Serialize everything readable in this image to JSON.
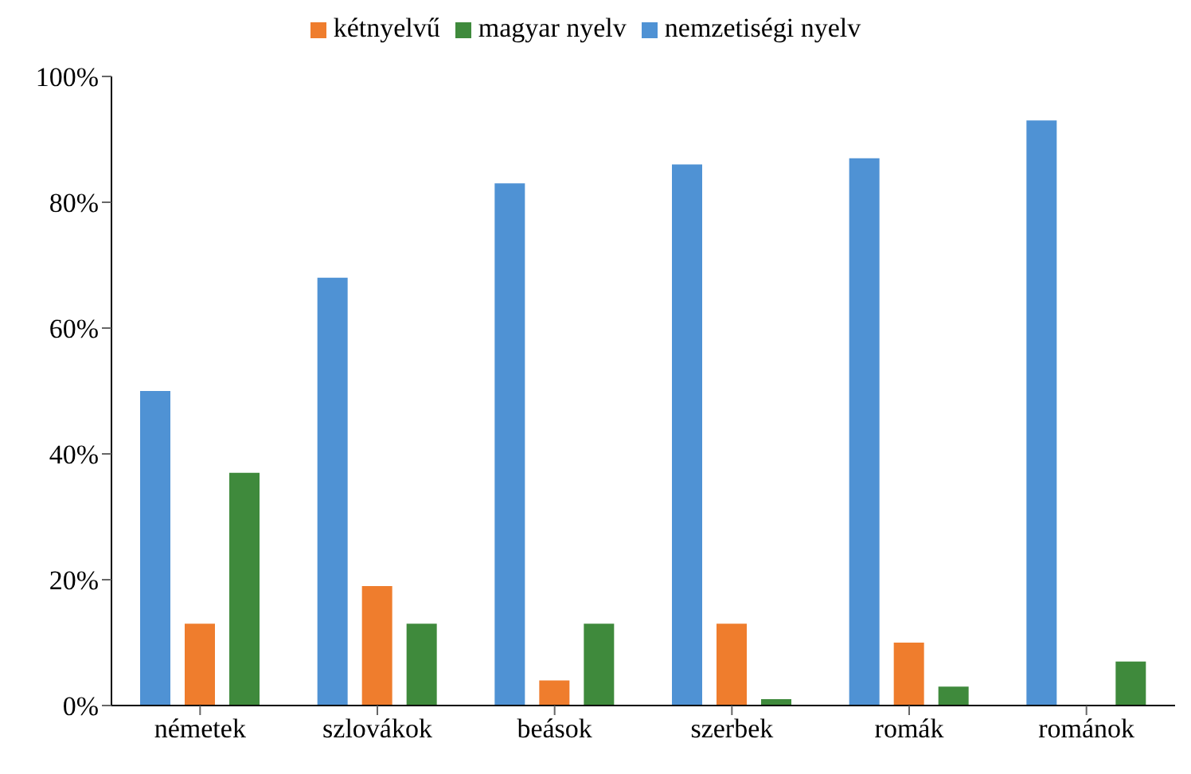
{
  "chart_data": {
    "type": "bar",
    "categories": [
      "németek",
      "szlovákok",
      "beások",
      "szerbek",
      "romák",
      "románok"
    ],
    "series": [
      {
        "name": "nemzetiségi nyelv",
        "color": "#4f92d4",
        "values": [
          50,
          68,
          83,
          86,
          87,
          93
        ]
      },
      {
        "name": "kétnyelvű",
        "color": "#ef7d2d",
        "values": [
          13,
          19,
          4,
          13,
          10,
          0
        ]
      },
      {
        "name": "magyar nyelv",
        "color": "#3f8a3c",
        "values": [
          37,
          13,
          13,
          1,
          3,
          7
        ]
      }
    ],
    "ylim": [
      0,
      100
    ],
    "yticks": [
      {
        "value": 0,
        "label": "0%"
      },
      {
        "value": 20,
        "label": "20%"
      },
      {
        "value": 40,
        "label": "40%"
      },
      {
        "value": 60,
        "label": "60%"
      },
      {
        "value": 80,
        "label": "80%"
      },
      {
        "value": 100,
        "label": "100%"
      }
    ],
    "grid": false,
    "legend": "top"
  }
}
